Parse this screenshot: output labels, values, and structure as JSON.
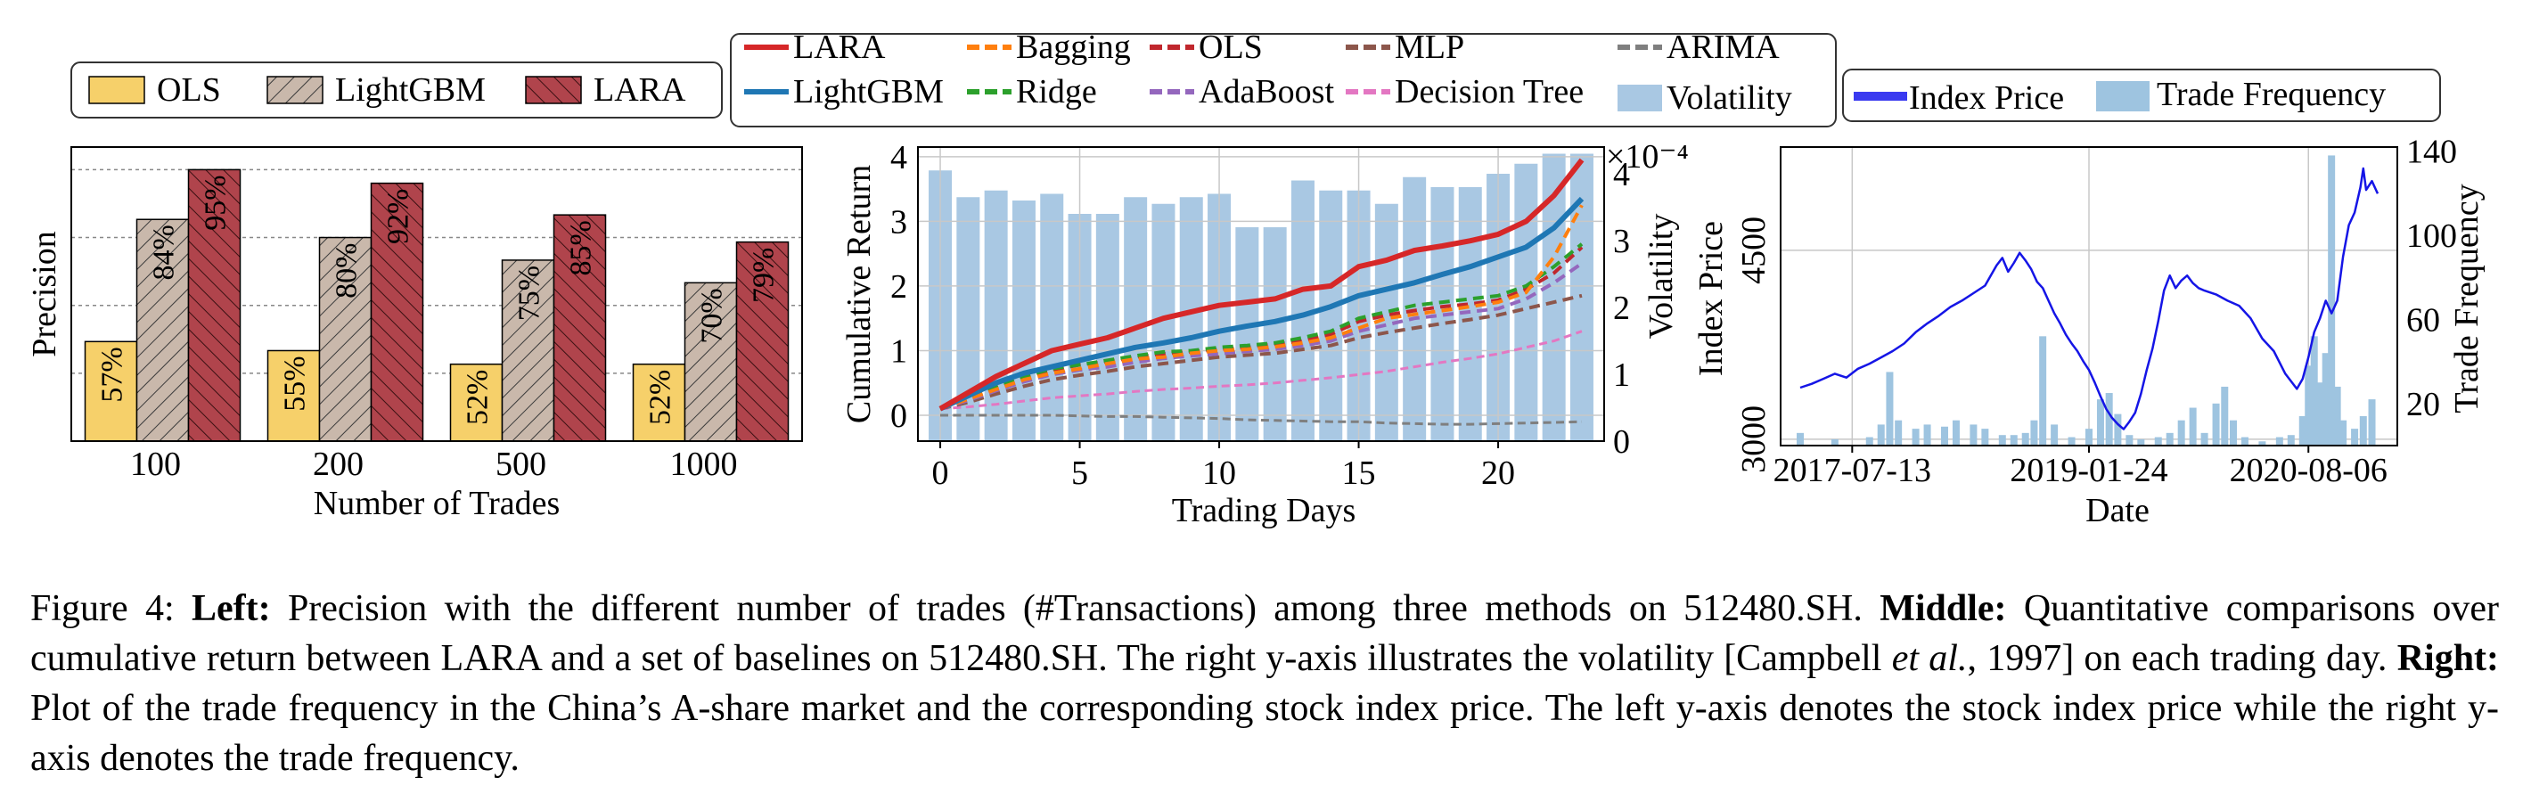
{
  "caption": {
    "figure_label": "Figure 4:",
    "left_head": "Left:",
    "left_text": "Precision with the different number of trades (#Transactions) among three methods on 512480.SH.",
    "middle_head": "Middle:",
    "middle_text_1": "Quantitative comparisons over cumulative return between LARA and a set of baselines on 512480.SH. The right y-axis illustrates the volatility [Campbell",
    "middle_cite": "et al.",
    "middle_text_2": ", 1997] on each trading day.",
    "right_head": "Right:",
    "right_text": "Plot of the trade frequency in the China’s A-share market and the corresponding stock index price. The left y-axis denotes the stock index price while the right y-axis denotes the trade frequency."
  },
  "chart_data": [
    {
      "type": "bar",
      "xlabel": "Number of Trades",
      "ylabel": "Precision",
      "categories": [
        "100",
        "200",
        "500",
        "1000"
      ],
      "legend_position": "top",
      "grid": "dotted horizontal",
      "ylim": [
        0.35,
        1.0
      ],
      "series": [
        {
          "name": "OLS",
          "values": [
            0.57,
            0.55,
            0.52,
            0.52
          ],
          "labels": [
            "57%",
            "55%",
            "52%",
            "52%"
          ],
          "color": "#f6d06a",
          "hatch": "none"
        },
        {
          "name": "LightGBM",
          "values": [
            0.84,
            0.8,
            0.75,
            0.7
          ],
          "labels": [
            "84%",
            "80%",
            "75%",
            "70%"
          ],
          "color": "#c9b8ab",
          "hatch": "//"
        },
        {
          "name": "LARA",
          "values": [
            0.95,
            0.92,
            0.85,
            0.79
          ],
          "labels": [
            "95%",
            "92%",
            "85%",
            "79%"
          ],
          "color": "#b0444c",
          "hatch": "\\\\"
        }
      ]
    },
    {
      "type": "line",
      "xlabel": "Trading Days",
      "ylabel": "Cumulative Return",
      "y2label": "Volatility",
      "y2_multiplier": "×10⁻⁴",
      "legend_position": "top",
      "grid": true,
      "x": [
        0,
        1,
        2,
        3,
        4,
        5,
        6,
        7,
        8,
        9,
        10,
        11,
        12,
        13,
        14,
        15,
        16,
        17,
        18,
        19,
        20,
        21,
        22,
        23
      ],
      "xticks": [
        0,
        5,
        10,
        15,
        20
      ],
      "yticks": [
        0,
        1,
        2,
        3,
        4
      ],
      "y2ticks": [
        0,
        1,
        2,
        3,
        4
      ],
      "xlim": [
        -0.8,
        23.8
      ],
      "ylim": [
        -0.4,
        4.15
      ],
      "y2lim": [
        0,
        4.4
      ],
      "volatility": {
        "name": "Volatility",
        "color": "#a9c8e3",
        "values": [
          4.05,
          3.65,
          3.75,
          3.6,
          3.7,
          3.4,
          3.4,
          3.65,
          3.55,
          3.65,
          3.7,
          3.2,
          3.2,
          3.9,
          3.75,
          3.75,
          3.55,
          3.95,
          3.8,
          3.8,
          4.0,
          4.15,
          4.3,
          4.3
        ]
      },
      "series": [
        {
          "name": "LARA",
          "color": "#d62728",
          "dash": "solid",
          "width": 6,
          "values": [
            0.1,
            0.35,
            0.6,
            0.8,
            1.0,
            1.1,
            1.2,
            1.35,
            1.5,
            1.6,
            1.7,
            1.75,
            1.8,
            1.95,
            2.0,
            2.3,
            2.4,
            2.55,
            2.62,
            2.7,
            2.8,
            3.0,
            3.4,
            3.95
          ]
        },
        {
          "name": "LightGBM",
          "color": "#1f77b4",
          "dash": "solid",
          "width": 6,
          "values": [
            0.1,
            0.3,
            0.5,
            0.65,
            0.75,
            0.85,
            0.95,
            1.05,
            1.12,
            1.2,
            1.3,
            1.38,
            1.45,
            1.55,
            1.68,
            1.85,
            1.95,
            2.05,
            2.18,
            2.3,
            2.45,
            2.6,
            2.9,
            3.35
          ]
        },
        {
          "name": "Bagging",
          "color": "#ff7f0e",
          "dash": "dash",
          "width": 4,
          "values": [
            0.1,
            0.25,
            0.4,
            0.55,
            0.65,
            0.72,
            0.8,
            0.87,
            0.9,
            0.96,
            1.0,
            1.02,
            1.06,
            1.12,
            1.2,
            1.35,
            1.5,
            1.56,
            1.62,
            1.68,
            1.75,
            1.9,
            2.45,
            3.25
          ]
        },
        {
          "name": "Ridge",
          "color": "#2ca02c",
          "dash": "dash",
          "width": 4,
          "values": [
            0.1,
            0.27,
            0.45,
            0.6,
            0.72,
            0.78,
            0.85,
            0.92,
            0.98,
            1.0,
            1.05,
            1.08,
            1.12,
            1.2,
            1.3,
            1.5,
            1.6,
            1.7,
            1.75,
            1.8,
            1.85,
            2.0,
            2.3,
            2.65
          ]
        },
        {
          "name": "OLS",
          "color": "#c0272d",
          "dash": "dash",
          "width": 4,
          "values": [
            0.1,
            0.25,
            0.42,
            0.57,
            0.7,
            0.78,
            0.83,
            0.9,
            0.95,
            0.98,
            1.02,
            1.05,
            1.1,
            1.15,
            1.25,
            1.45,
            1.55,
            1.62,
            1.68,
            1.72,
            1.78,
            1.95,
            2.2,
            2.6
          ]
        },
        {
          "name": "AdaBoost",
          "color": "#9467bd",
          "dash": "dash",
          "width": 4,
          "values": [
            0.1,
            0.23,
            0.38,
            0.52,
            0.63,
            0.7,
            0.75,
            0.82,
            0.88,
            0.92,
            0.95,
            0.99,
            1.02,
            1.08,
            1.15,
            1.3,
            1.4,
            1.5,
            1.55,
            1.6,
            1.65,
            1.8,
            2.05,
            2.35
          ]
        },
        {
          "name": "MLP",
          "color": "#8c564b",
          "dash": "dash",
          "width": 4,
          "values": [
            0.1,
            0.2,
            0.33,
            0.45,
            0.55,
            0.62,
            0.68,
            0.75,
            0.8,
            0.85,
            0.9,
            0.93,
            0.96,
            1.02,
            1.08,
            1.2,
            1.28,
            1.35,
            1.42,
            1.48,
            1.55,
            1.65,
            1.75,
            1.85
          ]
        },
        {
          "name": "Decision Tree",
          "color": "#e377c2",
          "dash": "dash",
          "width": 3,
          "values": [
            0.1,
            0.13,
            0.17,
            0.22,
            0.27,
            0.3,
            0.33,
            0.37,
            0.4,
            0.42,
            0.45,
            0.47,
            0.5,
            0.54,
            0.58,
            0.63,
            0.68,
            0.75,
            0.82,
            0.88,
            0.95,
            1.05,
            1.15,
            1.3
          ]
        },
        {
          "name": "ARIMA",
          "color": "#7f7f7f",
          "dash": "dash",
          "width": 3,
          "values": [
            0.0,
            0.0,
            0.0,
            0.0,
            0.0,
            -0.01,
            -0.02,
            -0.02,
            -0.03,
            -0.04,
            -0.05,
            -0.07,
            -0.08,
            -0.09,
            -0.1,
            -0.1,
            -0.12,
            -0.13,
            -0.14,
            -0.14,
            -0.13,
            -0.12,
            -0.11,
            -0.1
          ]
        }
      ]
    },
    {
      "type": "line",
      "xlabel": "Date",
      "ylabel": "Index Price",
      "y2label": "Trade Frequency",
      "legend_position": "top",
      "grid": true,
      "xticks": [
        "2017-07-13",
        "2019-01-24",
        "2020-08-06"
      ],
      "xtick_positions": [
        0.09,
        0.5,
        0.88
      ],
      "yticks": [
        3000,
        4500
      ],
      "y2ticks": [
        20,
        60,
        100,
        140
      ],
      "ylim": [
        2950,
        5320
      ],
      "y2lim": [
        0,
        142
      ],
      "series": [
        {
          "name": "Index Price",
          "color": "#1515e6",
          "points": [
            [
              0.0,
              3410
            ],
            [
              0.02,
              3440
            ],
            [
              0.04,
              3480
            ],
            [
              0.06,
              3520
            ],
            [
              0.08,
              3490
            ],
            [
              0.1,
              3560
            ],
            [
              0.12,
              3600
            ],
            [
              0.14,
              3650
            ],
            [
              0.16,
              3700
            ],
            [
              0.18,
              3760
            ],
            [
              0.2,
              3850
            ],
            [
              0.22,
              3920
            ],
            [
              0.24,
              3980
            ],
            [
              0.26,
              4050
            ],
            [
              0.28,
              4100
            ],
            [
              0.3,
              4160
            ],
            [
              0.32,
              4220
            ],
            [
              0.33,
              4300
            ],
            [
              0.34,
              4380
            ],
            [
              0.35,
              4440
            ],
            [
              0.36,
              4330
            ],
            [
              0.37,
              4400
            ],
            [
              0.38,
              4480
            ],
            [
              0.39,
              4420
            ],
            [
              0.4,
              4350
            ],
            [
              0.41,
              4250
            ],
            [
              0.42,
              4200
            ],
            [
              0.43,
              4100
            ],
            [
              0.44,
              4000
            ],
            [
              0.45,
              3920
            ],
            [
              0.46,
              3830
            ],
            [
              0.47,
              3760
            ],
            [
              0.48,
              3700
            ],
            [
              0.49,
              3620
            ],
            [
              0.5,
              3550
            ],
            [
              0.51,
              3450
            ],
            [
              0.52,
              3340
            ],
            [
              0.53,
              3240
            ],
            [
              0.54,
              3170
            ],
            [
              0.55,
              3120
            ],
            [
              0.56,
              3080
            ],
            [
              0.57,
              3140
            ],
            [
              0.58,
              3210
            ],
            [
              0.59,
              3360
            ],
            [
              0.6,
              3550
            ],
            [
              0.61,
              3720
            ],
            [
              0.62,
              3940
            ],
            [
              0.63,
              4180
            ],
            [
              0.64,
              4300
            ],
            [
              0.65,
              4200
            ],
            [
              0.66,
              4260
            ],
            [
              0.67,
              4300
            ],
            [
              0.68,
              4240
            ],
            [
              0.69,
              4200
            ],
            [
              0.7,
              4180
            ],
            [
              0.72,
              4150
            ],
            [
              0.74,
              4100
            ],
            [
              0.76,
              4060
            ],
            [
              0.78,
              3960
            ],
            [
              0.8,
              3800
            ],
            [
              0.82,
              3700
            ],
            [
              0.84,
              3520
            ],
            [
              0.86,
              3400
            ],
            [
              0.87,
              3480
            ],
            [
              0.88,
              3650
            ],
            [
              0.89,
              3850
            ],
            [
              0.9,
              3960
            ],
            [
              0.91,
              4100
            ],
            [
              0.92,
              4000
            ],
            [
              0.93,
              4100
            ],
            [
              0.94,
              4450
            ],
            [
              0.95,
              4700
            ],
            [
              0.96,
              4800
            ],
            [
              0.97,
              5000
            ],
            [
              0.975,
              5150
            ],
            [
              0.98,
              4980
            ],
            [
              0.99,
              5050
            ],
            [
              1.0,
              4950
            ]
          ]
        },
        {
          "name": "Trade Frequency",
          "color": "#9ec4e0",
          "bars": [
            [
              0.0,
              6
            ],
            [
              0.06,
              3
            ],
            [
              0.12,
              4
            ],
            [
              0.14,
              10
            ],
            [
              0.155,
              35
            ],
            [
              0.17,
              12
            ],
            [
              0.2,
              8
            ],
            [
              0.22,
              10
            ],
            [
              0.25,
              9
            ],
            [
              0.27,
              12
            ],
            [
              0.3,
              10
            ],
            [
              0.32,
              8
            ],
            [
              0.35,
              5
            ],
            [
              0.37,
              5
            ],
            [
              0.39,
              6
            ],
            [
              0.405,
              12
            ],
            [
              0.42,
              52
            ],
            [
              0.44,
              10
            ],
            [
              0.47,
              4
            ],
            [
              0.5,
              8
            ],
            [
              0.52,
              22
            ],
            [
              0.535,
              25
            ],
            [
              0.55,
              15
            ],
            [
              0.57,
              5
            ],
            [
              0.59,
              3
            ],
            [
              0.62,
              4
            ],
            [
              0.64,
              6
            ],
            [
              0.66,
              12
            ],
            [
              0.68,
              18
            ],
            [
              0.7,
              6
            ],
            [
              0.72,
              20
            ],
            [
              0.735,
              28
            ],
            [
              0.75,
              12
            ],
            [
              0.77,
              4
            ],
            [
              0.8,
              2
            ],
            [
              0.83,
              4
            ],
            [
              0.85,
              5
            ],
            [
              0.87,
              14
            ],
            [
              0.88,
              38
            ],
            [
              0.89,
              52
            ],
            [
              0.9,
              30
            ],
            [
              0.91,
              44
            ],
            [
              0.92,
              138
            ],
            [
              0.93,
              28
            ],
            [
              0.94,
              12
            ],
            [
              0.96,
              8
            ],
            [
              0.975,
              14
            ],
            [
              0.99,
              22
            ]
          ]
        }
      ]
    }
  ]
}
